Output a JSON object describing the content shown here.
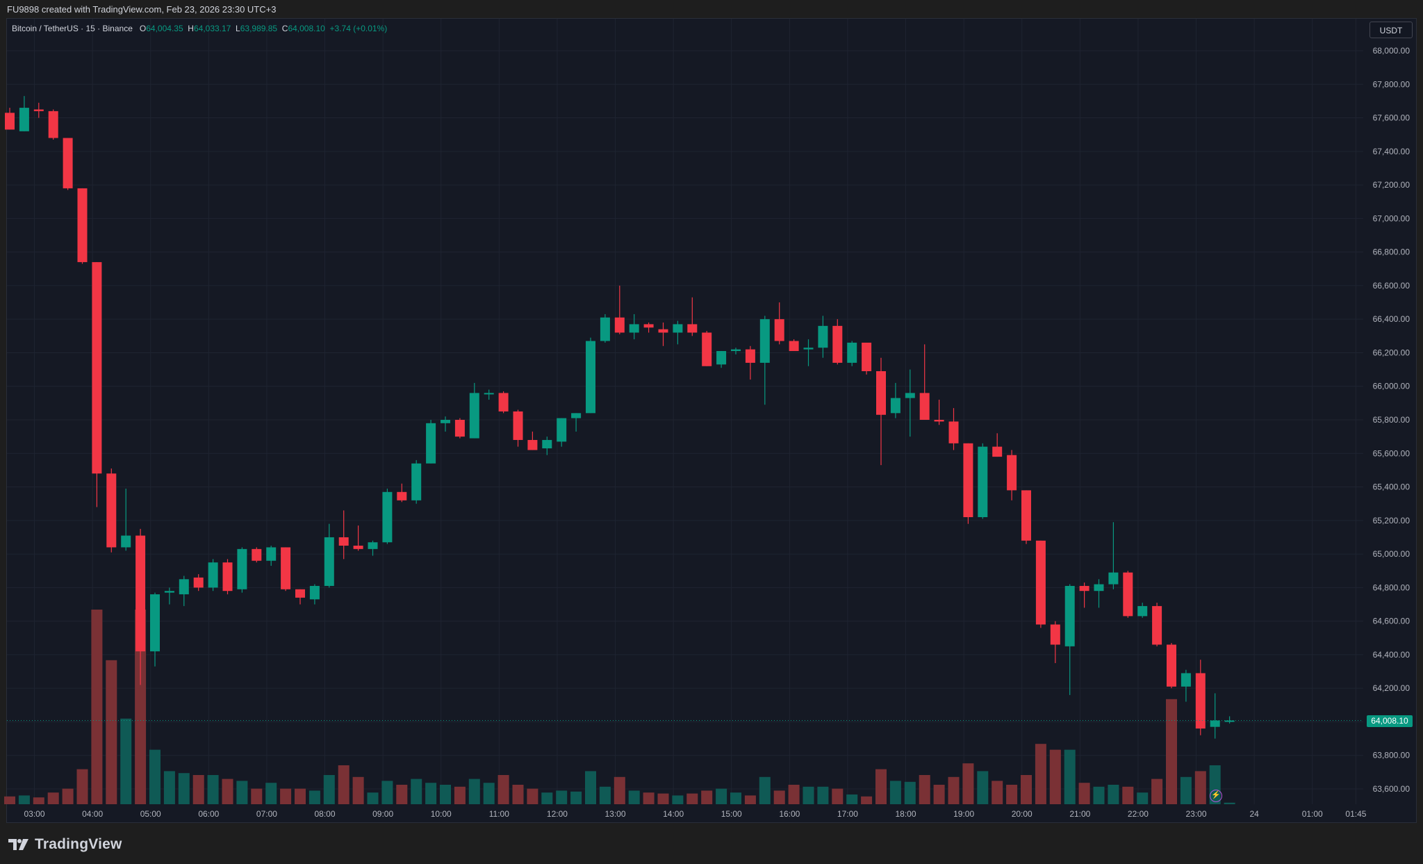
{
  "header": {
    "caption": "FU9898 created with TradingView.com, Feb 23, 2026 23:30 UTC+3"
  },
  "legend": {
    "symbol": "Bitcoin / TetherUS · 15 · Binance",
    "open_key": "O",
    "open": "64,004.35",
    "high_key": "H",
    "high": "64,033.17",
    "low_key": "L",
    "low": "63,989.85",
    "close_key": "C",
    "close": "64,008.10",
    "change": "+3.74 (+0.01%)"
  },
  "currency_button": "USDT",
  "last_price_label": "64,008.10",
  "brand": {
    "name": "TradingView"
  },
  "colors": {
    "up": "#089981",
    "down": "#f23645",
    "background": "#151924",
    "grid": "#1f2431",
    "axis_text": "#b2b5be"
  },
  "icons": {
    "alert": "lightning-icon",
    "logo": "tradingview-logo-icon"
  },
  "chart_data": {
    "type": "candlestick",
    "title": "Bitcoin / TetherUS · 15 · Binance",
    "interval_minutes": 15,
    "ylim": [
      63500,
      68100
    ],
    "y_ticks": [
      "68,000.00",
      "67,800.00",
      "67,600.00",
      "67,400.00",
      "67,200.00",
      "67,000.00",
      "66,800.00",
      "66,600.00",
      "66,400.00",
      "66,200.00",
      "66,000.00",
      "65,800.00",
      "65,600.00",
      "65,400.00",
      "65,200.00",
      "65,000.00",
      "64,800.00",
      "64,600.00",
      "64,400.00",
      "64,200.00",
      "64,000.00",
      "63,800.00",
      "63,600.00"
    ],
    "x_ticks": [
      {
        "label": "03:00",
        "bar": 1.7
      },
      {
        "label": "04:00",
        "bar": 5.7
      },
      {
        "label": "05:00",
        "bar": 9.7
      },
      {
        "label": "06:00",
        "bar": 13.7
      },
      {
        "label": "07:00",
        "bar": 17.7
      },
      {
        "label": "08:00",
        "bar": 21.7
      },
      {
        "label": "09:00",
        "bar": 25.7
      },
      {
        "label": "10:00",
        "bar": 29.7
      },
      {
        "label": "11:00",
        "bar": 33.7
      },
      {
        "label": "12:00",
        "bar": 37.7
      },
      {
        "label": "13:00",
        "bar": 41.7
      },
      {
        "label": "14:00",
        "bar": 45.7
      },
      {
        "label": "15:00",
        "bar": 49.7
      },
      {
        "label": "16:00",
        "bar": 53.7
      },
      {
        "label": "17:00",
        "bar": 57.7
      },
      {
        "label": "18:00",
        "bar": 61.7
      },
      {
        "label": "19:00",
        "bar": 65.7
      },
      {
        "label": "20:00",
        "bar": 69.7
      },
      {
        "label": "21:00",
        "bar": 73.7
      },
      {
        "label": "22:00",
        "bar": 77.7
      },
      {
        "label": "23:00",
        "bar": 81.7
      },
      {
        "label": "24",
        "bar": 85.7
      },
      {
        "label": "01:00",
        "bar": 89.7
      },
      {
        "label": "01:45",
        "bar": 92.7
      }
    ],
    "candles": [
      {
        "o": 67630,
        "h": 67660,
        "l": 67530,
        "c": 67530,
        "v": 40
      },
      {
        "o": 67520,
        "h": 67730,
        "l": 67520,
        "c": 67660,
        "v": 45
      },
      {
        "o": 67650,
        "h": 67690,
        "l": 67600,
        "c": 67640,
        "v": 35
      },
      {
        "o": 67640,
        "h": 67650,
        "l": 67470,
        "c": 67480,
        "v": 60
      },
      {
        "o": 67480,
        "h": 67480,
        "l": 67170,
        "c": 67180,
        "v": 80
      },
      {
        "o": 67180,
        "h": 67180,
        "l": 66730,
        "c": 66740,
        "v": 180
      },
      {
        "o": 66740,
        "h": 66740,
        "l": 65280,
        "c": 65480,
        "v": 1000
      },
      {
        "o": 65480,
        "h": 65510,
        "l": 65010,
        "c": 65040,
        "v": 740
      },
      {
        "o": 65040,
        "h": 65390,
        "l": 65020,
        "c": 65110,
        "v": 440
      },
      {
        "o": 65110,
        "h": 65150,
        "l": 64220,
        "c": 64420,
        "v": 1000
      },
      {
        "o": 64420,
        "h": 64770,
        "l": 64330,
        "c": 64760,
        "v": 280
      },
      {
        "o": 64770,
        "h": 64800,
        "l": 64700,
        "c": 64780,
        "v": 170
      },
      {
        "o": 64760,
        "h": 64870,
        "l": 64690,
        "c": 64850,
        "v": 160
      },
      {
        "o": 64860,
        "h": 64880,
        "l": 64780,
        "c": 64800,
        "v": 150
      },
      {
        "o": 64800,
        "h": 64970,
        "l": 64780,
        "c": 64950,
        "v": 150
      },
      {
        "o": 64950,
        "h": 64970,
        "l": 64760,
        "c": 64780,
        "v": 130
      },
      {
        "o": 64790,
        "h": 65040,
        "l": 64770,
        "c": 65030,
        "v": 120
      },
      {
        "o": 65030,
        "h": 65040,
        "l": 64950,
        "c": 64960,
        "v": 80
      },
      {
        "o": 64960,
        "h": 65050,
        "l": 64930,
        "c": 65040,
        "v": 110
      },
      {
        "o": 65040,
        "h": 65040,
        "l": 64780,
        "c": 64790,
        "v": 80
      },
      {
        "o": 64790,
        "h": 64790,
        "l": 64700,
        "c": 64740,
        "v": 80
      },
      {
        "o": 64730,
        "h": 64820,
        "l": 64700,
        "c": 64810,
        "v": 70
      },
      {
        "o": 64810,
        "h": 65180,
        "l": 64800,
        "c": 65100,
        "v": 150
      },
      {
        "o": 65100,
        "h": 65260,
        "l": 64970,
        "c": 65050,
        "v": 200
      },
      {
        "o": 65050,
        "h": 65170,
        "l": 65020,
        "c": 65030,
        "v": 140
      },
      {
        "o": 65030,
        "h": 65080,
        "l": 64990,
        "c": 65070,
        "v": 60
      },
      {
        "o": 65070,
        "h": 65390,
        "l": 65060,
        "c": 65370,
        "v": 120
      },
      {
        "o": 65370,
        "h": 65420,
        "l": 65310,
        "c": 65320,
        "v": 100
      },
      {
        "o": 65320,
        "h": 65560,
        "l": 65300,
        "c": 65540,
        "v": 130
      },
      {
        "o": 65540,
        "h": 65800,
        "l": 65540,
        "c": 65780,
        "v": 110
      },
      {
        "o": 65780,
        "h": 65820,
        "l": 65730,
        "c": 65800,
        "v": 100
      },
      {
        "o": 65800,
        "h": 65810,
        "l": 65690,
        "c": 65700,
        "v": 90
      },
      {
        "o": 65690,
        "h": 66020,
        "l": 65690,
        "c": 65960,
        "v": 130
      },
      {
        "o": 65960,
        "h": 65980,
        "l": 65920,
        "c": 65960,
        "v": 110
      },
      {
        "o": 65960,
        "h": 65970,
        "l": 65840,
        "c": 65850,
        "v": 150
      },
      {
        "o": 65850,
        "h": 65860,
        "l": 65640,
        "c": 65680,
        "v": 100
      },
      {
        "o": 65680,
        "h": 65730,
        "l": 65620,
        "c": 65620,
        "v": 80
      },
      {
        "o": 65630,
        "h": 65700,
        "l": 65590,
        "c": 65680,
        "v": 60
      },
      {
        "o": 65670,
        "h": 65810,
        "l": 65640,
        "c": 65810,
        "v": 70
      },
      {
        "o": 65810,
        "h": 65840,
        "l": 65730,
        "c": 65840,
        "v": 65
      },
      {
        "o": 65840,
        "h": 66290,
        "l": 65840,
        "c": 66270,
        "v": 170
      },
      {
        "o": 66270,
        "h": 66430,
        "l": 66260,
        "c": 66410,
        "v": 90
      },
      {
        "o": 66410,
        "h": 66600,
        "l": 66310,
        "c": 66320,
        "v": 140
      },
      {
        "o": 66320,
        "h": 66430,
        "l": 66280,
        "c": 66370,
        "v": 70
      },
      {
        "o": 66370,
        "h": 66380,
        "l": 66320,
        "c": 66350,
        "v": 60
      },
      {
        "o": 66340,
        "h": 66380,
        "l": 66240,
        "c": 66320,
        "v": 55
      },
      {
        "o": 66320,
        "h": 66390,
        "l": 66250,
        "c": 66370,
        "v": 45
      },
      {
        "o": 66370,
        "h": 66530,
        "l": 66300,
        "c": 66320,
        "v": 55
      },
      {
        "o": 66320,
        "h": 66330,
        "l": 66120,
        "c": 66120,
        "v": 70
      },
      {
        "o": 66130,
        "h": 66210,
        "l": 66110,
        "c": 66210,
        "v": 80
      },
      {
        "o": 66210,
        "h": 66230,
        "l": 66190,
        "c": 66220,
        "v": 60
      },
      {
        "o": 66220,
        "h": 66240,
        "l": 66040,
        "c": 66140,
        "v": 45
      },
      {
        "o": 66140,
        "h": 66420,
        "l": 65890,
        "c": 66400,
        "v": 140
      },
      {
        "o": 66400,
        "h": 66500,
        "l": 66250,
        "c": 66270,
        "v": 70
      },
      {
        "o": 66270,
        "h": 66280,
        "l": 66220,
        "c": 66210,
        "v": 100
      },
      {
        "o": 66220,
        "h": 66280,
        "l": 66120,
        "c": 66230,
        "v": 90
      },
      {
        "o": 66230,
        "h": 66420,
        "l": 66170,
        "c": 66360,
        "v": 90
      },
      {
        "o": 66360,
        "h": 66400,
        "l": 66130,
        "c": 66140,
        "v": 80
      },
      {
        "o": 66140,
        "h": 66270,
        "l": 66120,
        "c": 66260,
        "v": 50
      },
      {
        "o": 66260,
        "h": 66260,
        "l": 66070,
        "c": 66090,
        "v": 40
      },
      {
        "o": 66090,
        "h": 66170,
        "l": 65530,
        "c": 65830,
        "v": 180
      },
      {
        "o": 65840,
        "h": 66020,
        "l": 65810,
        "c": 65930,
        "v": 120
      },
      {
        "o": 65930,
        "h": 66100,
        "l": 65700,
        "c": 65960,
        "v": 115
      },
      {
        "o": 65960,
        "h": 66250,
        "l": 65800,
        "c": 65800,
        "v": 150
      },
      {
        "o": 65800,
        "h": 65920,
        "l": 65770,
        "c": 65790,
        "v": 100
      },
      {
        "o": 65790,
        "h": 65870,
        "l": 65620,
        "c": 65660,
        "v": 140
      },
      {
        "o": 65660,
        "h": 65660,
        "l": 65180,
        "c": 65220,
        "v": 210
      },
      {
        "o": 65220,
        "h": 65660,
        "l": 65210,
        "c": 65640,
        "v": 170
      },
      {
        "o": 65640,
        "h": 65720,
        "l": 65580,
        "c": 65580,
        "v": 120
      },
      {
        "o": 65590,
        "h": 65620,
        "l": 65320,
        "c": 65380,
        "v": 100
      },
      {
        "o": 65380,
        "h": 65380,
        "l": 65060,
        "c": 65080,
        "v": 150
      },
      {
        "o": 65080,
        "h": 65080,
        "l": 64560,
        "c": 64580,
        "v": 310
      },
      {
        "o": 64580,
        "h": 64600,
        "l": 64350,
        "c": 64460,
        "v": 280
      },
      {
        "o": 64450,
        "h": 64820,
        "l": 64160,
        "c": 64810,
        "v": 280
      },
      {
        "o": 64810,
        "h": 64830,
        "l": 64680,
        "c": 64780,
        "v": 110
      },
      {
        "o": 64780,
        "h": 64850,
        "l": 64680,
        "c": 64820,
        "v": 90
      },
      {
        "o": 64820,
        "h": 65190,
        "l": 64790,
        "c": 64890,
        "v": 100
      },
      {
        "o": 64890,
        "h": 64900,
        "l": 64620,
        "c": 64630,
        "v": 90
      },
      {
        "o": 64630,
        "h": 64710,
        "l": 64620,
        "c": 64690,
        "v": 60
      },
      {
        "o": 64690,
        "h": 64710,
        "l": 64450,
        "c": 64460,
        "v": 130
      },
      {
        "o": 64460,
        "h": 64470,
        "l": 64200,
        "c": 64210,
        "v": 540
      },
      {
        "o": 64210,
        "h": 64310,
        "l": 64120,
        "c": 64290,
        "v": 140
      },
      {
        "o": 64290,
        "h": 64370,
        "l": 63920,
        "c": 63960,
        "v": 170
      },
      {
        "o": 63970,
        "h": 64170,
        "l": 63900,
        "c": 64008,
        "v": 200
      },
      {
        "o": 64004,
        "h": 64033,
        "l": 63990,
        "c": 64008,
        "v": 8
      }
    ]
  }
}
